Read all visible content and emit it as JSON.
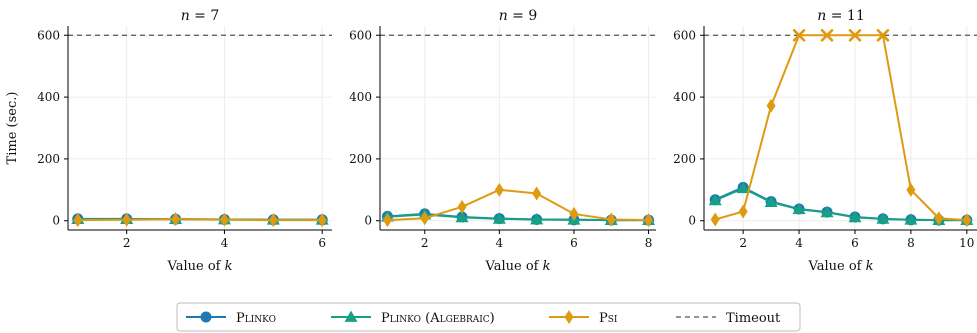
{
  "chart_data": {
    "type": "line",
    "ylabel": "Time (sec.)",
    "timeout": {
      "value": 600,
      "label": "Timeout",
      "color": "#555555"
    },
    "series_styles": [
      {
        "key": "plinko",
        "name": "Plinko",
        "color": "#1f77b4",
        "marker": "circle"
      },
      {
        "key": "plinko_alg",
        "name": "Plinko (Algebraic)",
        "color": "#16a085",
        "marker": "triangle"
      },
      {
        "key": "psi",
        "name": "Psi",
        "color": "#de9b12",
        "marker": "diamond"
      }
    ],
    "panels": [
      {
        "title_prefix": "n",
        "title_value": "= 7",
        "xlabel_prefix": "Value of",
        "xlabel_var": "k",
        "xlim": [
          0.8,
          6.2
        ],
        "xticks": [
          2,
          4,
          6
        ],
        "ylim": [
          -30,
          630
        ],
        "yticks": [
          0,
          200,
          400,
          600
        ],
        "show_yaxis_label": true,
        "series": [
          {
            "key": "plinko",
            "x": [
              1,
              2,
              3,
              4,
              5,
              6
            ],
            "y": [
              6,
              6,
              5,
              4,
              3,
              3
            ]
          },
          {
            "key": "plinko_alg",
            "x": [
              1,
              2,
              3,
              4,
              5,
              6
            ],
            "y": [
              5,
              5,
              5,
              4,
              3,
              3
            ]
          },
          {
            "key": "psi",
            "x": [
              1,
              2,
              3,
              4,
              5,
              6
            ],
            "y": [
              2,
              3,
              5,
              3,
              2,
              2
            ],
            "timeouts": []
          }
        ]
      },
      {
        "title_prefix": "n",
        "title_value": "= 9",
        "xlabel_prefix": "Value of",
        "xlabel_var": "k",
        "xlim": [
          0.8,
          8.2
        ],
        "xticks": [
          2,
          4,
          6,
          8
        ],
        "ylim": [
          -30,
          630
        ],
        "yticks": [
          0,
          200,
          400,
          600
        ],
        "show_yaxis_label": false,
        "series": [
          {
            "key": "plinko",
            "x": [
              1,
              2,
              3,
              4,
              5,
              6,
              7,
              8
            ],
            "y": [
              14,
              22,
              12,
              7,
              4,
              3,
              2,
              2
            ]
          },
          {
            "key": "plinko_alg",
            "x": [
              1,
              2,
              3,
              4,
              5,
              6,
              7,
              8
            ],
            "y": [
              13,
              20,
              11,
              6,
              4,
              3,
              2,
              2
            ]
          },
          {
            "key": "psi",
            "x": [
              1,
              2,
              3,
              4,
              5,
              6,
              7,
              8
            ],
            "y": [
              2,
              8,
              45,
              100,
              88,
              22,
              4,
              2
            ],
            "timeouts": []
          }
        ]
      },
      {
        "title_prefix": "n",
        "title_value": "= 11",
        "xlabel_prefix": "Value of",
        "xlabel_var": "k",
        "xlim": [
          0.6,
          10.4
        ],
        "xticks": [
          2,
          4,
          6,
          8,
          10
        ],
        "ylim": [
          -30,
          630
        ],
        "yticks": [
          0,
          200,
          400,
          600
        ],
        "show_yaxis_label": false,
        "series": [
          {
            "key": "plinko",
            "x": [
              1,
              2,
              3,
              4,
              5,
              6,
              7,
              8,
              9,
              10
            ],
            "y": [
              68,
              108,
              62,
              38,
              28,
              12,
              6,
              3,
              2,
              2
            ]
          },
          {
            "key": "plinko_alg",
            "x": [
              1,
              2,
              3,
              4,
              5,
              6,
              7,
              8,
              9,
              10
            ],
            "y": [
              66,
              105,
              60,
              37,
              27,
              11,
              6,
              3,
              2,
              2
            ]
          },
          {
            "key": "psi",
            "x": [
              1,
              2,
              3,
              4,
              5,
              6,
              7,
              8,
              9,
              10
            ],
            "y": [
              4,
              30,
              372,
              600,
              600,
              600,
              600,
              100,
              8,
              2
            ],
            "timeouts": [
              4,
              5,
              6,
              7
            ]
          }
        ]
      }
    ]
  }
}
